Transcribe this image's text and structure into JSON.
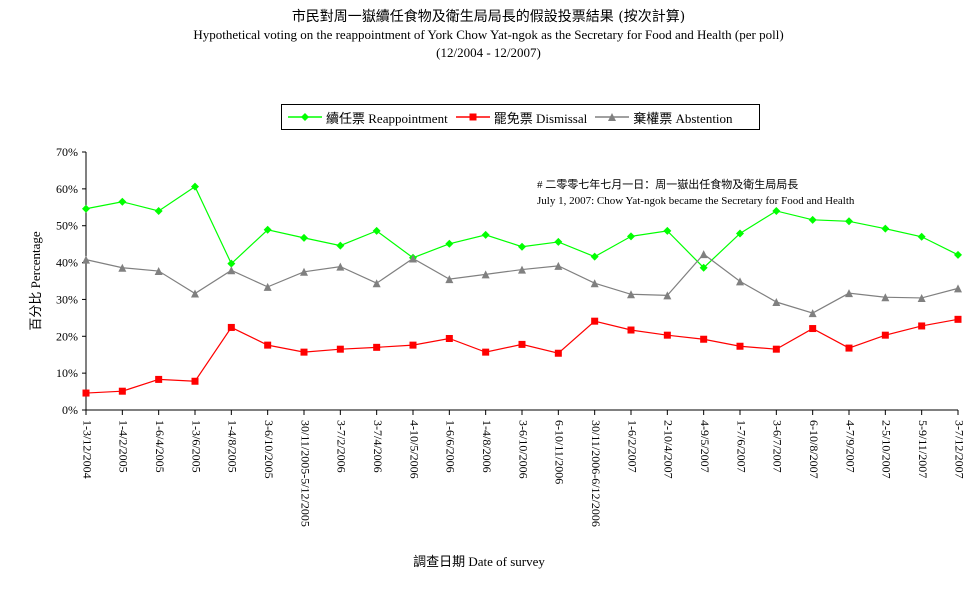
{
  "titles": {
    "chinese": "市民對周一嶽續任食物及衛生局局長的假設投票結果 (按次計算)",
    "english": "Hypothetical voting on the reappointment of York Chow Yat-ngok as the Secretary for Food and Health (per poll)",
    "period": "(12/2004 - 12/2007)"
  },
  "annotation": {
    "line1": "# 二零零七年七月一日：周一嶽出任食物及衛生局局長",
    "line2": "July 1, 2007: Chow Yat-ngok became the Secretary for Food and Health"
  },
  "chart_data": {
    "type": "line",
    "xlabel": "調查日期 Date of survey",
    "ylabel": "百分比 Percentage",
    "ylim": [
      0,
      70
    ],
    "yticks": [
      "0%",
      "10%",
      "20%",
      "30%",
      "40%",
      "50%",
      "60%",
      "70%"
    ],
    "legend_position": "top-center",
    "grid": false,
    "categories": [
      "1-3/12/2004",
      "1-4/2/2005",
      "1-6/4/2005",
      "1-3/6/2005",
      "1-4/8/2005",
      "3-6/10/2005",
      "30/11/2005-5/12/2005",
      "3-7/2/2006",
      "3-7/4/2006",
      "4-10/5/2006",
      "1-6/6/2006",
      "1-4/8/2006",
      "3-6/10/2006",
      "6-10/11/2006",
      "30/11/2006-6/12/2006",
      "1-6/2/2007",
      "2-10/4/2007",
      "4-9/5/2007",
      "1-7/6/2007",
      "3-6/7/2007",
      "6-10/8/2007",
      "4-7/9/2007",
      "2-5/10/2007",
      "5-9/11/2007",
      "3-7/12/2007"
    ],
    "series": [
      {
        "name": "續任票 Reappointment",
        "color": "#00ff00",
        "marker": "diamond",
        "values": [
          54.6,
          56.5,
          54.0,
          60.6,
          39.7,
          48.9,
          46.7,
          44.6,
          48.6,
          41.3,
          45.1,
          47.5,
          44.3,
          45.6,
          41.6,
          47.1,
          48.6,
          38.6,
          47.9,
          54.0,
          51.6,
          51.2,
          49.2,
          47.0,
          42.1
        ]
      },
      {
        "name": "罷免票 Dismissal",
        "color": "#ff0000",
        "marker": "square",
        "values": [
          4.6,
          5.1,
          8.3,
          7.8,
          22.4,
          17.6,
          15.7,
          16.5,
          17.0,
          17.6,
          19.4,
          15.7,
          17.8,
          15.4,
          24.1,
          21.7,
          20.3,
          19.2,
          17.3,
          16.5,
          22.1,
          16.8,
          20.3,
          22.8,
          24.6
        ]
      },
      {
        "name": "棄權票 Abstention",
        "color": "#808080",
        "marker": "triangle",
        "values": [
          40.8,
          38.6,
          37.7,
          31.6,
          37.9,
          33.4,
          37.5,
          38.9,
          34.4,
          41.1,
          35.5,
          36.8,
          38.1,
          39.1,
          34.4,
          31.4,
          31.1,
          42.3,
          34.9,
          29.3,
          26.3,
          31.7,
          30.6,
          30.4,
          33.0
        ]
      }
    ]
  }
}
